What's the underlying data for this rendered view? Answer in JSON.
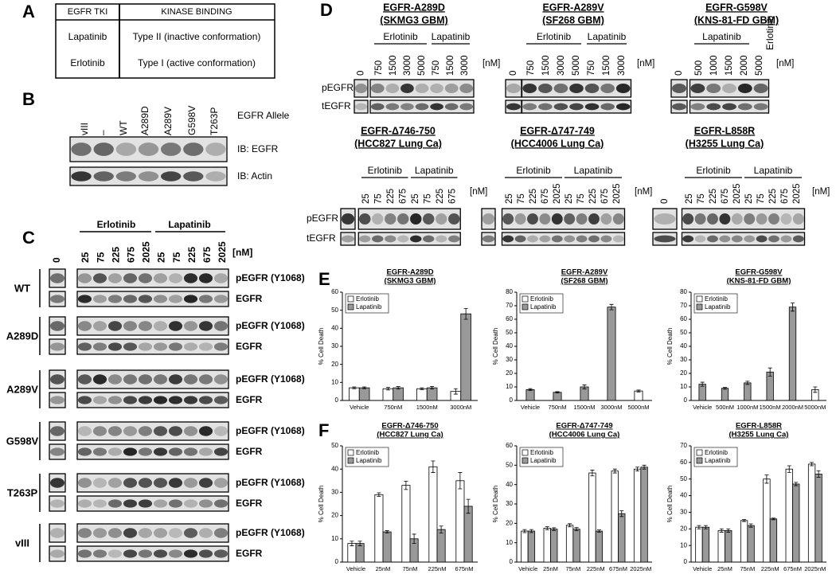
{
  "panel_labels": [
    "A",
    "B",
    "C",
    "D",
    "E",
    "F"
  ],
  "panel_a": {
    "headers": [
      "EGFR TKI",
      "KINASE BINDING"
    ],
    "rows": [
      [
        "Lapatinib",
        "Type II (inactive conformation)"
      ],
      [
        "Erlotinib",
        "Type I (active conformation)"
      ]
    ]
  },
  "panel_b": {
    "lanes": [
      "vIII",
      "–",
      "WT",
      "A289D",
      "A289V",
      "G598V",
      "T263P"
    ],
    "lane_title": "EGFR Allele",
    "blots": [
      "IB: EGFR",
      "IB: Actin"
    ]
  },
  "panel_c": {
    "drugs": [
      "Erlotinib",
      "Lapatinib"
    ],
    "zero": "0",
    "doses": [
      "25",
      "75",
      "225",
      "675",
      "2025",
      "25",
      "75",
      "225",
      "675",
      "2025"
    ],
    "unit": "[nM]",
    "alleles": [
      "WT",
      "A289D",
      "A289V",
      "G598V",
      "T263P",
      "vIII"
    ],
    "blots": [
      "pEGFR (Y1068)",
      "EGFR"
    ]
  },
  "panel_d": {
    "blots": [
      "pEGFR",
      "tEGFR"
    ],
    "unit": "[nM]",
    "subpanels": [
      {
        "title": [
          "EGFR-A289D",
          "(SKMG3 GBM)"
        ],
        "drugs": [
          "Erlotinib",
          "Lapatinib"
        ],
        "zero": "0",
        "doses": [
          "750",
          "1500",
          "3000",
          "5000",
          "750",
          "1500",
          "3000"
        ]
      },
      {
        "title": [
          "EGFR-A289V",
          "(SF268 GBM)"
        ],
        "drugs": [
          "Erlotinib",
          "Lapatinib"
        ],
        "zero": "0",
        "doses": [
          "750",
          "1500",
          "3000",
          "5000",
          "750",
          "1500",
          "3000"
        ]
      },
      {
        "title": [
          "EGFR-G598V",
          "(KNS-81-FD GBM)"
        ],
        "drugs": [
          "Lapatinib",
          "Erlotinib"
        ],
        "zero": "0",
        "doses": [
          "500",
          "1000",
          "1500",
          "2000",
          "5000"
        ]
      },
      {
        "title": [
          "EGFR-Δ746-750",
          "(HCC827 Lung Ca)"
        ],
        "drugs": [
          "Erlotinib",
          "Lapatinib"
        ],
        "doses": [
          "25",
          "75",
          "225",
          "675",
          "25",
          "75",
          "225",
          "675"
        ]
      },
      {
        "title": [
          "EGFR-Δ747-749",
          "(HCC4006 Lung Ca)"
        ],
        "drugs": [
          "Erlotinib",
          "Lapatinib"
        ],
        "doses": [
          "25",
          "75",
          "225",
          "675",
          "2025",
          "25",
          "75",
          "225",
          "675",
          "2025"
        ]
      },
      {
        "title": [
          "EGFR-L858R",
          "(H3255 Lung Ca)"
        ],
        "drugs": [
          "Erlotinib",
          "Lapatinib"
        ],
        "zero": "0",
        "doses": [
          "25",
          "75",
          "225",
          "675",
          "2025",
          "25",
          "75",
          "225",
          "675",
          "2025"
        ]
      }
    ]
  },
  "chart_data": [
    {
      "type": "bar",
      "title": [
        "EGFR-A289D",
        "(SKMG3 GBM)"
      ],
      "ylabel": "% Cell Death",
      "categories": [
        "Vehicle",
        "750nM",
        "1500nM",
        "3000nM"
      ],
      "series": [
        {
          "name": "Erlotinib",
          "color": "#ffffff",
          "values": [
            7,
            6.5,
            6.5,
            5
          ],
          "errors": [
            0.5,
            0.7,
            0.5,
            1.5
          ]
        },
        {
          "name": "Lapatinib",
          "color": "#999999",
          "values": [
            7,
            7,
            7,
            48
          ],
          "errors": [
            0.5,
            0.7,
            0.7,
            3
          ]
        }
      ],
      "ylim": [
        0,
        60
      ],
      "yticks": [
        0,
        10,
        20,
        30,
        40,
        50,
        60
      ],
      "legend": "upper left"
    },
    {
      "type": "bar",
      "title": [
        "EGFR-A289V",
        "(SF268 GBM)"
      ],
      "ylabel": "% Cell Death",
      "categories": [
        "Vehicle",
        "750nM",
        "1500nM",
        "3000nM",
        "5000nM"
      ],
      "series": [
        {
          "name": "Erlotinib",
          "color": "#ffffff",
          "values": [
            null,
            null,
            null,
            null,
            7
          ],
          "errors": [
            null,
            null,
            null,
            null,
            0.7
          ]
        },
        {
          "name": "Lapatinib",
          "color": "#999999",
          "values": [
            8,
            6,
            10,
            69,
            null
          ],
          "errors": [
            0.7,
            0.5,
            1.5,
            2,
            null
          ]
        }
      ],
      "ylim": [
        0,
        80
      ],
      "yticks": [
        0,
        10,
        20,
        30,
        40,
        50,
        60,
        70,
        80
      ],
      "legend": "upper left"
    },
    {
      "type": "bar",
      "title": [
        "EGFR-G598V",
        "(KNS-81-FD GBM)"
      ],
      "ylabel": "% Cell Death",
      "categories": [
        "Vehicle",
        "500nM",
        "1000nM",
        "1500nM",
        "2000nM",
        "5000nM"
      ],
      "series": [
        {
          "name": "Erlotinib",
          "color": "#ffffff",
          "values": [
            null,
            null,
            null,
            null,
            null,
            8
          ],
          "errors": [
            null,
            null,
            null,
            null,
            null,
            2
          ]
        },
        {
          "name": "Lapatinib",
          "color": "#999999",
          "values": [
            12,
            9,
            13,
            21,
            69,
            null
          ],
          "errors": [
            1.5,
            0.7,
            1.2,
            3,
            3,
            null
          ]
        }
      ],
      "ylim": [
        0,
        80
      ],
      "yticks": [
        0,
        10,
        20,
        30,
        40,
        50,
        60,
        70,
        80
      ],
      "legend": "upper left"
    },
    {
      "type": "bar",
      "title": [
        "EGFR-Δ746-750",
        "(HCC827 Lung Ca)"
      ],
      "ylabel": "% Cell Death",
      "categories": [
        "Vehicle",
        "25nM",
        "75nM",
        "225nM",
        "675nM"
      ],
      "series": [
        {
          "name": "Erlotinib",
          "color": "#ffffff",
          "values": [
            8,
            29,
            33,
            41,
            35
          ],
          "errors": [
            1,
            0.8,
            1.8,
            2.5,
            3.5
          ]
        },
        {
          "name": "Lapatinib",
          "color": "#999999",
          "values": [
            8,
            13,
            10,
            14,
            24
          ],
          "errors": [
            1,
            0.5,
            2,
            1.5,
            3
          ]
        }
      ],
      "ylim": [
        0,
        50
      ],
      "yticks": [
        0,
        10,
        20,
        30,
        40,
        50
      ],
      "legend": "upper left"
    },
    {
      "type": "bar",
      "title": [
        "EGFR-Δ747-749",
        "(HCC4006 Lung Ca)"
      ],
      "ylabel": "% Cell Death",
      "categories": [
        "Vehicle",
        "25nM",
        "75nM",
        "225nM",
        "675nM",
        "2025nM"
      ],
      "series": [
        {
          "name": "Erlotinib",
          "color": "#ffffff",
          "values": [
            16,
            17.5,
            19,
            46,
            47,
            48
          ],
          "errors": [
            0.8,
            0.8,
            0.8,
            1.5,
            1,
            1
          ]
        },
        {
          "name": "Lapatinib",
          "color": "#999999",
          "values": [
            16,
            17,
            17,
            16,
            25,
            49
          ],
          "errors": [
            0.8,
            0.7,
            0.8,
            0.6,
            1.5,
            1
          ]
        }
      ],
      "ylim": [
        0,
        60
      ],
      "yticks": [
        0,
        10,
        20,
        30,
        40,
        50,
        60
      ],
      "legend": "upper left"
    },
    {
      "type": "bar",
      "title": [
        "EGFR-L858R",
        "(H3255 Lung Ca)"
      ],
      "ylabel": "% Cell Death",
      "categories": [
        "Vehicle",
        "25nM",
        "75nM",
        "225nM",
        "675nM",
        "2025nM"
      ],
      "series": [
        {
          "name": "Erlotinib",
          "color": "#ffffff",
          "values": [
            21,
            19,
            25,
            50,
            56,
            59
          ],
          "errors": [
            1,
            1,
            0.6,
            2.5,
            2,
            1
          ]
        },
        {
          "name": "Lapatinib",
          "color": "#999999",
          "values": [
            21,
            19,
            22,
            26,
            47,
            53
          ],
          "errors": [
            1,
            1,
            1,
            0.5,
            1,
            2
          ]
        }
      ],
      "ylim": [
        0,
        70
      ],
      "yticks": [
        0,
        10,
        20,
        30,
        40,
        50,
        60,
        70
      ],
      "legend": "upper left"
    }
  ]
}
